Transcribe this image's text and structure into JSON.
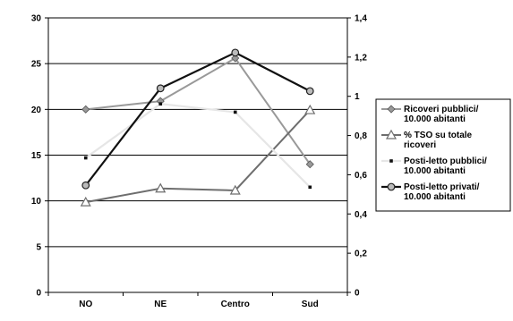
{
  "chart_data": {
    "type": "line",
    "categories": [
      "NO",
      "NE",
      "Centro",
      "Sud"
    ],
    "y_left": {
      "min": 0,
      "max": 30,
      "ticks": [
        "0",
        "5",
        "10",
        "15",
        "20",
        "25",
        "30"
      ]
    },
    "y_right": {
      "min": 0,
      "max": 1.4,
      "ticks": [
        "0",
        "0,2",
        "0,4",
        "0,6",
        "0,8",
        "1",
        "1,2",
        "1,4"
      ]
    },
    "grid": true,
    "legend_position": "right",
    "series": [
      {
        "name_lines": [
          "Ricoveri pubblici/",
          "10.000 abitanti"
        ],
        "axis": "left",
        "color": "#999999",
        "marker": "diamond",
        "values": [
          20,
          20.9,
          25.6,
          14
        ]
      },
      {
        "name_lines": [
          "% TSO su totale",
          "ricoveri"
        ],
        "axis": "right",
        "color": "#6e6e6e",
        "marker": "triangle",
        "values": [
          0.46,
          0.53,
          0.52,
          0.93
        ]
      },
      {
        "name_lines": [
          "Posti-letto pubblici/",
          "10.000 abitanti"
        ],
        "axis": "left",
        "color": "#e6e6e6",
        "marker": "square",
        "values": [
          14.7,
          20.6,
          19.7,
          11.5
        ]
      },
      {
        "name_lines": [
          "Posti-letto privati/",
          "10.000 abitanti"
        ],
        "axis": "left",
        "color": "#111111",
        "marker": "circle",
        "values": [
          11.7,
          22.3,
          26.2,
          22
        ]
      }
    ]
  }
}
